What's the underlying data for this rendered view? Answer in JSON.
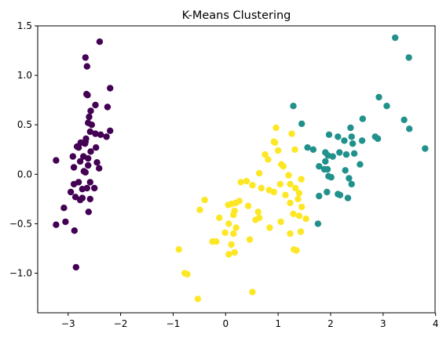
{
  "chart_data": {
    "type": "scatter",
    "title": "K-Means Clustering",
    "xlabel": "",
    "ylabel": "",
    "xlim": [
      -3.58,
      3.99
    ],
    "ylim": [
      -1.4,
      1.5
    ],
    "xticks": [
      -3,
      -2,
      -1,
      0,
      1,
      2,
      3,
      4
    ],
    "yticks": [
      -1.0,
      -0.5,
      0.0,
      0.5,
      1.0,
      1.5
    ],
    "xtick_labels": [
      "−3",
      "−2",
      "−1",
      "0",
      "1",
      "2",
      "3",
      "4"
    ],
    "ytick_labels": [
      "−1.0",
      "−0.5",
      "0.0",
      "0.5",
      "1.0",
      "1.5"
    ],
    "grid": false,
    "series": [
      {
        "color": "#440154",
        "points": [
          [
            -2.4,
            1.34
          ],
          [
            -2.67,
            1.18
          ],
          [
            -2.64,
            1.09
          ],
          [
            -2.2,
            0.87
          ],
          [
            -2.65,
            0.81
          ],
          [
            -2.63,
            0.8
          ],
          [
            -2.48,
            0.7
          ],
          [
            -2.25,
            0.68
          ],
          [
            -2.57,
            0.64
          ],
          [
            -2.6,
            0.58
          ],
          [
            -2.62,
            0.52
          ],
          [
            -2.55,
            0.5
          ],
          [
            -2.2,
            0.44
          ],
          [
            -2.58,
            0.43
          ],
          [
            -2.48,
            0.41
          ],
          [
            -2.38,
            0.4
          ],
          [
            -2.27,
            0.38
          ],
          [
            -2.66,
            0.36
          ],
          [
            -2.67,
            0.33
          ],
          [
            -2.76,
            0.32
          ],
          [
            -2.68,
            0.31
          ],
          [
            -2.83,
            0.28
          ],
          [
            -2.8,
            0.27
          ],
          [
            -2.47,
            0.27
          ],
          [
            -2.57,
            0.23
          ],
          [
            -2.71,
            0.18
          ],
          [
            -2.91,
            0.18
          ],
          [
            -2.62,
            0.16
          ],
          [
            -3.23,
            0.14
          ],
          [
            -2.77,
            0.13
          ],
          [
            -2.45,
            0.12
          ],
          [
            -2.62,
            0.09
          ],
          [
            -2.89,
            0.07
          ],
          [
            -2.41,
            0.06
          ],
          [
            -2.7,
            0.03
          ],
          [
            -2.67,
            0.02
          ],
          [
            -2.8,
            -0.08
          ],
          [
            -2.58,
            -0.08
          ],
          [
            -2.89,
            -0.1
          ],
          [
            -2.5,
            -0.14
          ],
          [
            -2.64,
            -0.14
          ],
          [
            -2.73,
            -0.15
          ],
          [
            -2.95,
            -0.18
          ],
          [
            -2.86,
            -0.23
          ],
          [
            -2.73,
            -0.24
          ],
          [
            -2.58,
            -0.25
          ],
          [
            -2.77,
            -0.26
          ],
          [
            -3.08,
            -0.34
          ],
          [
            -2.61,
            -0.38
          ],
          [
            -3.05,
            -0.48
          ],
          [
            -3.23,
            -0.51
          ],
          [
            -2.88,
            -0.57
          ],
          [
            -2.85,
            -0.94
          ]
        ]
      },
      {
        "color": "#21918c",
        "points": [
          [
            3.23,
            1.38
          ],
          [
            3.49,
            1.18
          ],
          [
            2.92,
            0.78
          ],
          [
            3.07,
            0.69
          ],
          [
            1.29,
            0.69
          ],
          [
            2.61,
            0.56
          ],
          [
            3.4,
            0.55
          ],
          [
            1.45,
            0.51
          ],
          [
            3.5,
            0.46
          ],
          [
            2.38,
            0.47
          ],
          [
            1.97,
            0.4
          ],
          [
            2.14,
            0.38
          ],
          [
            2.4,
            0.38
          ],
          [
            2.26,
            0.34
          ],
          [
            2.85,
            0.38
          ],
          [
            2.9,
            0.36
          ],
          [
            2.6,
            0.34
          ],
          [
            2.42,
            0.31
          ],
          [
            1.9,
            0.22
          ],
          [
            2.17,
            0.22
          ],
          [
            2.45,
            0.21
          ],
          [
            1.56,
            0.27
          ],
          [
            1.67,
            0.25
          ],
          [
            3.8,
            0.26
          ],
          [
            2.3,
            0.2
          ],
          [
            1.95,
            0.19
          ],
          [
            2.04,
            0.18
          ],
          [
            1.9,
            0.13
          ],
          [
            1.78,
            0.08
          ],
          [
            2.56,
            0.1
          ],
          [
            2.35,
            -0.04
          ],
          [
            1.88,
            0.05
          ],
          [
            1.94,
            0.05
          ],
          [
            2.28,
            0.04
          ],
          [
            2.01,
            -0.03
          ],
          [
            1.96,
            -0.02
          ],
          [
            2.4,
            -0.1
          ],
          [
            1.93,
            -0.18
          ],
          [
            2.14,
            -0.2
          ],
          [
            2.18,
            -0.21
          ],
          [
            1.78,
            -0.22
          ],
          [
            2.33,
            -0.24
          ],
          [
            1.76,
            -0.5
          ]
        ]
      },
      {
        "color": "#fde725",
        "points": [
          [
            0.96,
            0.47
          ],
          [
            1.26,
            0.41
          ],
          [
            0.92,
            0.33
          ],
          [
            0.94,
            0.32
          ],
          [
            1.32,
            0.25
          ],
          [
            1.0,
            0.24
          ],
          [
            0.81,
            0.15
          ],
          [
            0.75,
            0.2
          ],
          [
            1.06,
            0.1
          ],
          [
            1.1,
            0.08
          ],
          [
            0.64,
            0.01
          ],
          [
            1.2,
            -0.01
          ],
          [
            1.44,
            -0.05
          ],
          [
            0.4,
            -0.07
          ],
          [
            0.29,
            -0.08
          ],
          [
            0.51,
            -0.11
          ],
          [
            1.04,
            -0.1
          ],
          [
            1.23,
            -0.1
          ],
          [
            0.68,
            -0.14
          ],
          [
            0.83,
            -0.16
          ],
          [
            1.33,
            -0.14
          ],
          [
            0.92,
            -0.18
          ],
          [
            1.14,
            -0.21
          ],
          [
            1.4,
            -0.19
          ],
          [
            1.38,
            -0.25
          ],
          [
            0.26,
            -0.27
          ],
          [
            0.11,
            -0.3
          ],
          [
            -0.4,
            -0.26
          ],
          [
            0.19,
            -0.29
          ],
          [
            1.23,
            -0.29
          ],
          [
            0.05,
            -0.31
          ],
          [
            0.43,
            -0.32
          ],
          [
            1.45,
            -0.33
          ],
          [
            0.17,
            -0.37
          ],
          [
            0.62,
            -0.38
          ],
          [
            0.15,
            -0.41
          ],
          [
            1.29,
            -0.4
          ],
          [
            0.64,
            -0.44
          ],
          [
            1.4,
            -0.42
          ],
          [
            -0.12,
            -0.44
          ],
          [
            0.57,
            -0.46
          ],
          [
            1.05,
            -0.48
          ],
          [
            1.53,
            -0.45
          ],
          [
            0.06,
            -0.5
          ],
          [
            0.2,
            -0.54
          ],
          [
            1.43,
            -0.58
          ],
          [
            -0.49,
            -0.36
          ],
          [
            0.84,
            -0.54
          ],
          [
            1.23,
            -0.6
          ],
          [
            0.15,
            -0.6
          ],
          [
            -0.01,
            -0.59
          ],
          [
            0.46,
            -0.66
          ],
          [
            -0.25,
            -0.68
          ],
          [
            0.11,
            -0.71
          ],
          [
            -0.18,
            -0.68
          ],
          [
            0.17,
            -0.79
          ],
          [
            1.3,
            -0.76
          ],
          [
            1.35,
            -0.77
          ],
          [
            -0.89,
            -0.76
          ],
          [
            0.06,
            -0.81
          ],
          [
            -0.78,
            -1.0
          ],
          [
            -0.73,
            -1.01
          ],
          [
            0.51,
            -1.19
          ],
          [
            -0.53,
            -1.26
          ]
        ]
      }
    ]
  }
}
